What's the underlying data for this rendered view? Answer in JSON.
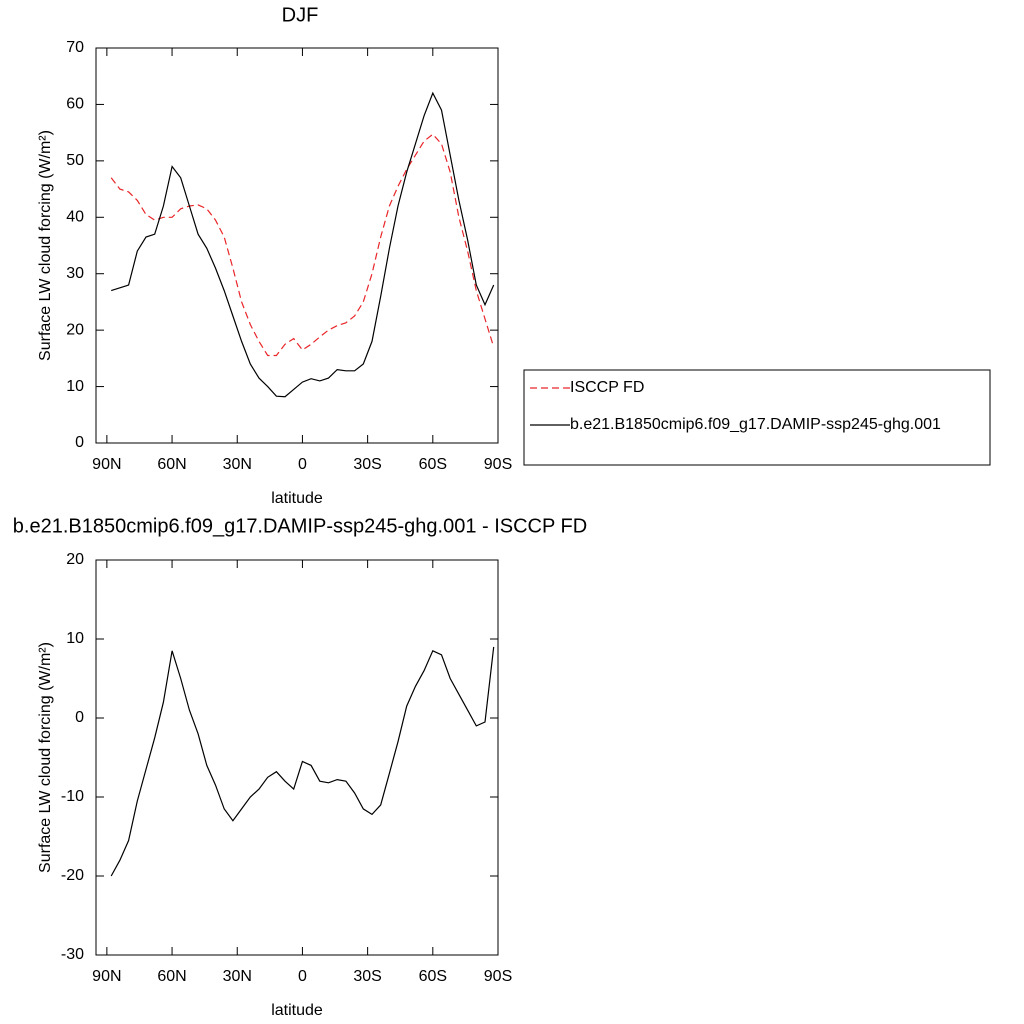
{
  "chart_data": [
    {
      "type": "line",
      "title": "DJF",
      "xlabel": "latitude",
      "ylabel": "Surface LW cloud forcing (W/m²)",
      "x": [
        88,
        84,
        80,
        76,
        72,
        68,
        64,
        60,
        56,
        52,
        48,
        44,
        40,
        36,
        32,
        28,
        24,
        20,
        16,
        12,
        8,
        4,
        0,
        -4,
        -8,
        -12,
        -16,
        -20,
        -24,
        -28,
        -32,
        -36,
        -40,
        -44,
        -48,
        -52,
        -56,
        -60,
        -64,
        -68,
        -72,
        -76,
        -80,
        -84,
        -88
      ],
      "series": [
        {
          "name": "ISCCP FD",
          "color": "#e8262a",
          "line_style": "dashed",
          "values": [
            47,
            45,
            44.5,
            43,
            40.5,
            39.5,
            40,
            40,
            41.5,
            42,
            42.2,
            41.5,
            39.5,
            36.5,
            31,
            25,
            21,
            18,
            15.5,
            15.5,
            17.5,
            18.5,
            16.5,
            17.5,
            18.8,
            20,
            20.8,
            21.3,
            22.5,
            25,
            30,
            36.5,
            42,
            45.5,
            48.5,
            51,
            53.5,
            54.7,
            53,
            48,
            40,
            34,
            27,
            22,
            17
          ]
        },
        {
          "name": "b.e21.B1850cmip6.f09_g17.DAMIP-ssp245-ghg.001",
          "color": "#000000",
          "line_style": "solid",
          "values": [
            27,
            27.5,
            28,
            34,
            36.5,
            37,
            42,
            49,
            47,
            42,
            37,
            34.5,
            31,
            27,
            22.5,
            18,
            14,
            11.5,
            10,
            8.3,
            8.2,
            9.5,
            10.8,
            11.4,
            11,
            11.5,
            13,
            12.8,
            12.8,
            14,
            18,
            26,
            34.5,
            42,
            48,
            53,
            58,
            62,
            59,
            51,
            43,
            36,
            28,
            24.5,
            28
          ]
        }
      ],
      "xlim": [
        95,
        -90
      ],
      "xticks": [
        {
          "value": 90,
          "label": "90N"
        },
        {
          "value": 60,
          "label": "60N"
        },
        {
          "value": 30,
          "label": "30N"
        },
        0,
        {
          "value": -30,
          "label": "30S"
        },
        {
          "value": -60,
          "label": "60S"
        },
        {
          "value": -90,
          "label": "90S"
        }
      ],
      "ylim": [
        0,
        70
      ],
      "yticks": [
        0,
        10,
        20,
        30,
        40,
        50,
        60,
        70
      ],
      "grid": false,
      "legend": "right"
    },
    {
      "type": "line",
      "title": "b.e21.B1850cmip6.f09_g17.DAMIP-ssp245-ghg.001 - ISCCP FD",
      "xlabel": "latitude",
      "ylabel": "Surface LW cloud forcing (W/m²)",
      "x": [
        88,
        84,
        80,
        76,
        72,
        68,
        64,
        60,
        56,
        52,
        48,
        44,
        40,
        36,
        32,
        28,
        24,
        20,
        16,
        12,
        8,
        4,
        0,
        -4,
        -8,
        -12,
        -16,
        -20,
        -24,
        -28,
        -32,
        -36,
        -40,
        -44,
        -48,
        -52,
        -56,
        -60,
        -64,
        -68,
        -72,
        -76,
        -80,
        -84,
        -88
      ],
      "series": [
        {
          "color": "#000000",
          "line_style": "solid",
          "values": [
            -20,
            -18,
            -15.5,
            -10.5,
            -6.5,
            -2.5,
            2,
            8.5,
            5,
            1,
            -2,
            -6,
            -8.5,
            -11.5,
            -13,
            -11.5,
            -10,
            -9,
            -7.5,
            -6.8,
            -8,
            -9,
            -5.5,
            -6,
            -8,
            -8.2,
            -7.8,
            -8,
            -9.5,
            -11.5,
            -12.2,
            -11,
            -7,
            -3,
            1.5,
            4,
            6,
            8.5,
            8,
            5,
            3,
            1,
            -1,
            -0.5,
            9
          ]
        }
      ],
      "xlim": [
        95,
        -90
      ],
      "xticks": [
        {
          "value": 90,
          "label": "90N"
        },
        {
          "value": 60,
          "label": "60N"
        },
        {
          "value": 30,
          "label": "30N"
        },
        0,
        {
          "value": -30,
          "label": "30S"
        },
        {
          "value": -60,
          "label": "60S"
        },
        {
          "value": -90,
          "label": "90S"
        }
      ],
      "ylim": [
        -30,
        20
      ],
      "yticks": [
        -30,
        -20,
        -10,
        0,
        10,
        20
      ],
      "grid": false
    }
  ]
}
